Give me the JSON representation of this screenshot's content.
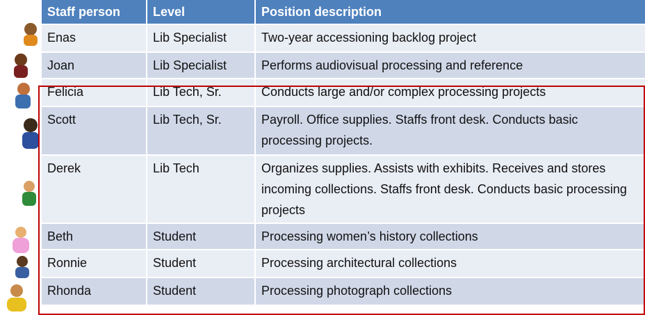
{
  "table": {
    "headers": [
      "Staff person",
      "Level",
      "Position description"
    ],
    "rows": [
      [
        "Enas",
        "Lib Specialist",
        "Two-year accessioning backlog project"
      ],
      [
        "Joan",
        "Lib Specialist",
        "Performs audiovisual processing and reference"
      ],
      [
        "Felicia",
        "Lib Tech, Sr.",
        "Conducts large and/or complex processing projects"
      ],
      [
        "Scott",
        "Lib Tech, Sr.",
        "Payroll.  Office supplies. Staffs front desk. Conducts basic processing projects."
      ],
      [
        "Derek",
        "Lib Tech",
        "Organizes supplies.  Assists with exhibits. Receives and stores incoming collections. Staffs front desk.  Conducts basic processing projects"
      ],
      [
        "Beth",
        "Student",
        "Processing women’s history collections"
      ],
      [
        "Ronnie",
        "Student",
        "Processing architectural collections"
      ],
      [
        "Rhonda",
        "Student",
        "Processing photograph collections"
      ]
    ]
  }
}
